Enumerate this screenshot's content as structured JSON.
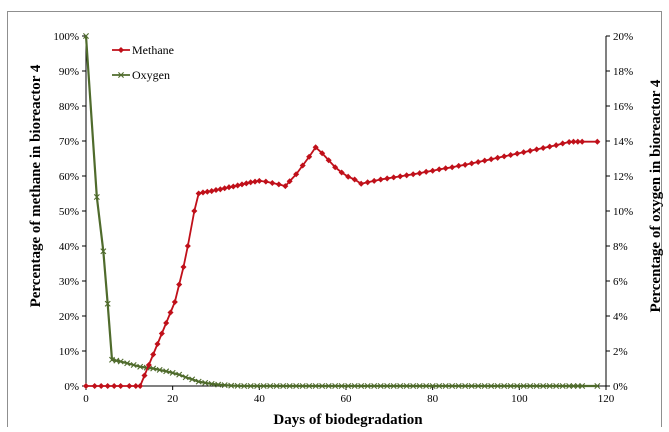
{
  "chart_data": {
    "type": "line",
    "xlabel": "Days of biodegradation",
    "ylabel_left": "Percentage of methane in bioreactor 4",
    "ylabel_right": "Percentage of oxygen in bioreactor 4",
    "xlim": [
      0,
      120
    ],
    "x_ticks": [
      "0",
      "20",
      "40",
      "60",
      "80",
      "100",
      "120"
    ],
    "ylim_left": [
      0,
      100
    ],
    "y_ticks_left": [
      "0%",
      "10%",
      "20%",
      "30%",
      "40%",
      "50%",
      "60%",
      "70%",
      "80%",
      "90%",
      "100%"
    ],
    "ylim_right": [
      0,
      20
    ],
    "y_ticks_right": [
      "0%",
      "2%",
      "4%",
      "6%",
      "8%",
      "10%",
      "12%",
      "14%",
      "16%",
      "18%",
      "20%"
    ],
    "grid": false,
    "legend_position": "top-left",
    "series": [
      {
        "name": "Methane",
        "axis": "left",
        "color": "#c0101a",
        "marker": "diamond",
        "points": [
          [
            0,
            0
          ],
          [
            2,
            0
          ],
          [
            3.5,
            0
          ],
          [
            5,
            0
          ],
          [
            6.5,
            0
          ],
          [
            8,
            0
          ],
          [
            10,
            0
          ],
          [
            11.5,
            0
          ],
          [
            12.5,
            0
          ],
          [
            13.5,
            3
          ],
          [
            14.5,
            6
          ],
          [
            15.5,
            9
          ],
          [
            16.5,
            12
          ],
          [
            17.5,
            15
          ],
          [
            18.5,
            18
          ],
          [
            19.5,
            21
          ],
          [
            20.5,
            24
          ],
          [
            21.5,
            29
          ],
          [
            22.5,
            34
          ],
          [
            23.5,
            40
          ],
          [
            25,
            50
          ],
          [
            26,
            55
          ],
          [
            27,
            55.3
          ],
          [
            28,
            55.5
          ],
          [
            29,
            55.7
          ],
          [
            30,
            56
          ],
          [
            31,
            56.2
          ],
          [
            32,
            56.5
          ],
          [
            33,
            56.8
          ],
          [
            34,
            57
          ],
          [
            35,
            57.3
          ],
          [
            36,
            57.6
          ],
          [
            37,
            57.9
          ],
          [
            38,
            58.2
          ],
          [
            39,
            58.4
          ],
          [
            40,
            58.6
          ],
          [
            41.5,
            58.4
          ],
          [
            43,
            58
          ],
          [
            44.5,
            57.6
          ],
          [
            46,
            57.1
          ],
          [
            47,
            58.5
          ],
          [
            48.5,
            60.5
          ],
          [
            50,
            63
          ],
          [
            51.5,
            65.5
          ],
          [
            53,
            68.2
          ],
          [
            54.5,
            66.5
          ],
          [
            56,
            64.5
          ],
          [
            57.5,
            62.5
          ],
          [
            59,
            61
          ],
          [
            60.5,
            59.8
          ],
          [
            62,
            59
          ],
          [
            63.5,
            57.8
          ],
          [
            65,
            58.2
          ],
          [
            66.5,
            58.6
          ],
          [
            68,
            59
          ],
          [
            69.5,
            59.3
          ],
          [
            71,
            59.6
          ],
          [
            72.5,
            59.9
          ],
          [
            74,
            60.2
          ],
          [
            75.5,
            60.5
          ],
          [
            77,
            60.8
          ],
          [
            78.5,
            61.2
          ],
          [
            80,
            61.5
          ],
          [
            81.5,
            61.9
          ],
          [
            83,
            62.2
          ],
          [
            84.5,
            62.5
          ],
          [
            86,
            62.9
          ],
          [
            87.5,
            63.2
          ],
          [
            89,
            63.6
          ],
          [
            90.5,
            64
          ],
          [
            92,
            64.4
          ],
          [
            93.5,
            64.8
          ],
          [
            95,
            65.2
          ],
          [
            96.5,
            65.6
          ],
          [
            98,
            66
          ],
          [
            99.5,
            66.4
          ],
          [
            101,
            66.8
          ],
          [
            102.5,
            67.2
          ],
          [
            104,
            67.6
          ],
          [
            105.5,
            68
          ],
          [
            107,
            68.4
          ],
          [
            108.5,
            68.8
          ],
          [
            110,
            69.3
          ],
          [
            111.5,
            69.7
          ],
          [
            112.5,
            69.8
          ],
          [
            113.5,
            69.8
          ],
          [
            114.5,
            69.8
          ],
          [
            118,
            69.8
          ]
        ]
      },
      {
        "name": "Oxygen",
        "axis": "right",
        "color": "#4f6b2c",
        "marker": "x",
        "points": [
          [
            0,
            20
          ],
          [
            2.5,
            10.8
          ],
          [
            4,
            7.7
          ],
          [
            5,
            4.7
          ],
          [
            6,
            1.5
          ],
          [
            7,
            1.45
          ],
          [
            8,
            1.4
          ],
          [
            9.5,
            1.3
          ],
          [
            11,
            1.2
          ],
          [
            12.5,
            1.1
          ],
          [
            14,
            1.05
          ],
          [
            15.5,
            1.0
          ],
          [
            17,
            0.92
          ],
          [
            18.5,
            0.84
          ],
          [
            20,
            0.75
          ],
          [
            21.5,
            0.65
          ],
          [
            23,
            0.5
          ],
          [
            24.5,
            0.38
          ],
          [
            26,
            0.25
          ],
          [
            27.5,
            0.18
          ],
          [
            29,
            0.12
          ],
          [
            30.5,
            0.08
          ],
          [
            32,
            0.05
          ],
          [
            33.5,
            0.02
          ],
          [
            35,
            0.01
          ],
          [
            36.5,
            0
          ],
          [
            38,
            0
          ],
          [
            39.5,
            0
          ],
          [
            41,
            0
          ],
          [
            42.5,
            0
          ],
          [
            44,
            0
          ],
          [
            45.5,
            0
          ],
          [
            47,
            0
          ],
          [
            48.5,
            0
          ],
          [
            50,
            0
          ],
          [
            51.5,
            0
          ],
          [
            53,
            0
          ],
          [
            54.5,
            0
          ],
          [
            56,
            0
          ],
          [
            57.5,
            0
          ],
          [
            59,
            0
          ],
          [
            60.5,
            0
          ],
          [
            62,
            0
          ],
          [
            63.5,
            0
          ],
          [
            65,
            0
          ],
          [
            66.5,
            0
          ],
          [
            68,
            0
          ],
          [
            69.5,
            0
          ],
          [
            71,
            0
          ],
          [
            72.5,
            0
          ],
          [
            74,
            0
          ],
          [
            75.5,
            0
          ],
          [
            77,
            0
          ],
          [
            78.5,
            0
          ],
          [
            80,
            0
          ],
          [
            81.5,
            0
          ],
          [
            83,
            0
          ],
          [
            84.5,
            0
          ],
          [
            86,
            0
          ],
          [
            87.5,
            0
          ],
          [
            89,
            0
          ],
          [
            90.5,
            0
          ],
          [
            92,
            0
          ],
          [
            93.5,
            0
          ],
          [
            95,
            0
          ],
          [
            96.5,
            0
          ],
          [
            98,
            0
          ],
          [
            99.5,
            0
          ],
          [
            101,
            0
          ],
          [
            102.5,
            0
          ],
          [
            104,
            0
          ],
          [
            105.5,
            0
          ],
          [
            107,
            0
          ],
          [
            108.5,
            0
          ],
          [
            110,
            0
          ],
          [
            111.5,
            0
          ],
          [
            112.5,
            0
          ],
          [
            113.5,
            0
          ],
          [
            114.5,
            0
          ],
          [
            118,
            0
          ]
        ]
      }
    ]
  }
}
